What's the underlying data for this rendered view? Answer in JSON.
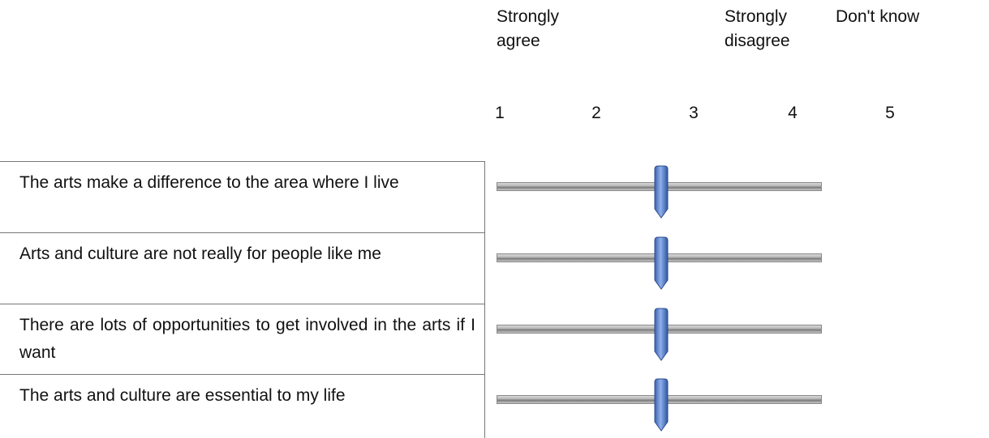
{
  "header": {
    "columns": [
      "Strongly agree",
      "",
      "",
      "Strongly disagree",
      "Don't know"
    ],
    "scale": [
      "1",
      "2",
      "3",
      "4",
      "5"
    ]
  },
  "rows": [
    "The arts make a difference to the area where I live",
    "Arts and culture are not really for people like me",
    "There are lots of opportunities to get involved in the arts if I want",
    "The arts and culture are essential to my life"
  ]
}
